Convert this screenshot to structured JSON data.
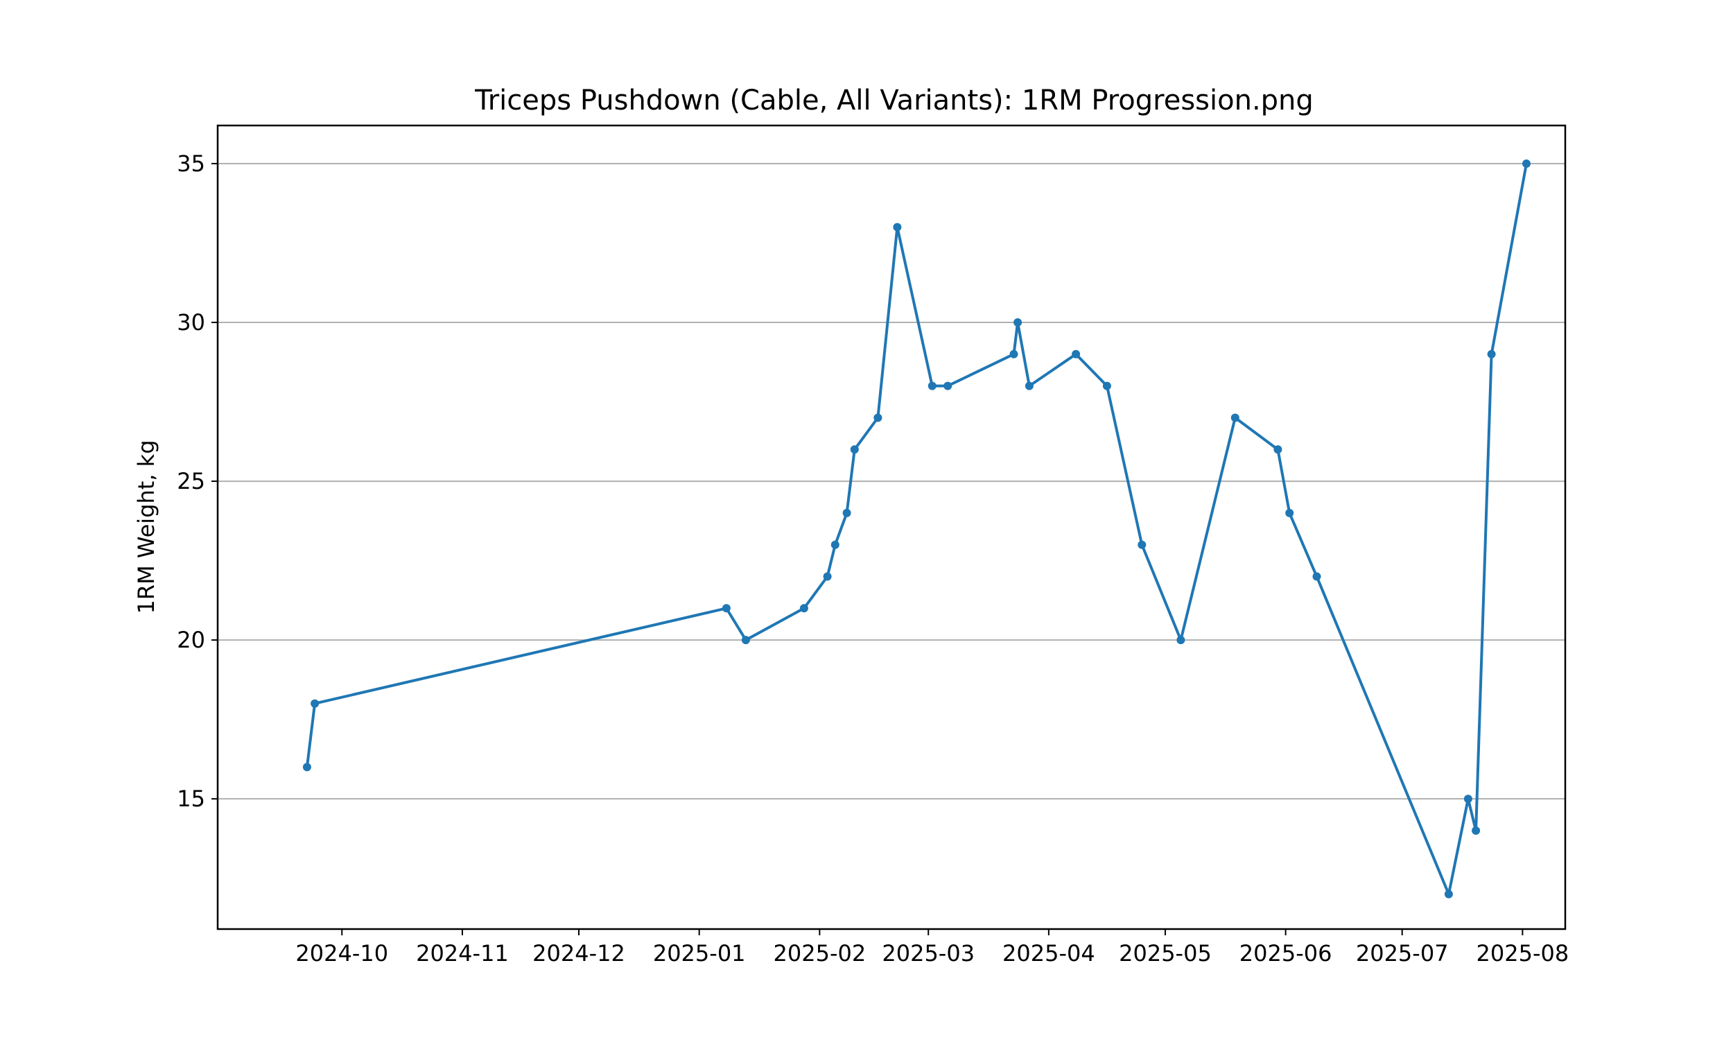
{
  "chart_data": {
    "type": "line",
    "title": "Triceps Pushdown (Cable, All Variants): 1RM Progression.png",
    "xlabel": "",
    "ylabel": "1RM Weight, kg",
    "xlim": [
      "2024-08-30",
      "2025-08-12"
    ],
    "ylim": [
      10.9,
      36.2
    ],
    "grid": "horizontal",
    "x_ticks": [
      "2024-10",
      "2024-11",
      "2024-12",
      "2025-01",
      "2025-02",
      "2025-03",
      "2025-04",
      "2025-05",
      "2025-06",
      "2025-07",
      "2025-08"
    ],
    "y_ticks": [
      15,
      20,
      25,
      30,
      35
    ],
    "colors": {
      "line": "#1f77b4"
    },
    "series": [
      {
        "x": [
          "2024-09-22",
          "2024-09-24",
          "2025-01-08",
          "2025-01-13",
          "2025-01-28",
          "2025-02-03",
          "2025-02-05",
          "2025-02-08",
          "2025-02-10",
          "2025-02-16",
          "2025-02-21",
          "2025-03-02",
          "2025-03-06",
          "2025-03-23",
          "2025-03-24",
          "2025-03-27",
          "2025-04-08",
          "2025-04-16",
          "2025-04-25",
          "2025-05-05",
          "2025-05-19",
          "2025-05-30",
          "2025-06-02",
          "2025-06-09",
          "2025-07-13",
          "2025-07-18",
          "2025-07-20",
          "2025-07-24",
          "2025-08-02"
        ],
        "y": [
          16,
          18,
          21,
          20,
          21,
          22,
          23,
          24,
          26,
          27,
          33,
          28,
          28,
          29,
          30,
          28,
          29,
          28,
          23,
          20,
          27,
          26,
          24,
          22,
          12,
          15,
          14,
          29,
          35
        ]
      }
    ]
  }
}
